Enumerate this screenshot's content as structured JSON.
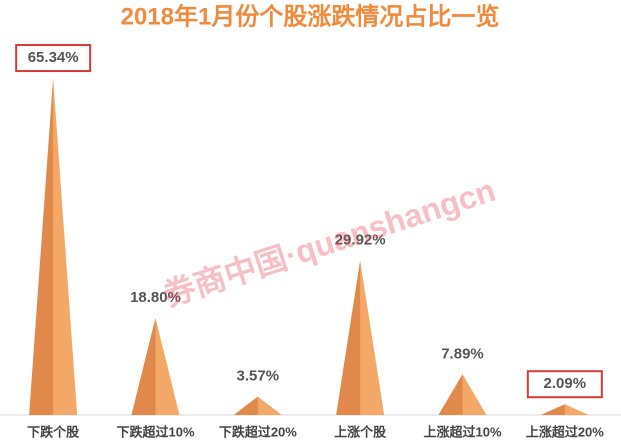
{
  "chart_data": {
    "type": "cone",
    "title": "2018年1月份个股涨跌情况占比一览",
    "watermark": "券商中国·quanshangcn",
    "categories": [
      "下跌个股",
      "下跌超过10%",
      "下跌超过20%",
      "上涨个股",
      "上涨超过10%",
      "上涨超过20%"
    ],
    "values": [
      65.34,
      18.8,
      3.57,
      29.92,
      7.89,
      2.09
    ],
    "value_labels": [
      "65.34%",
      "18.80%",
      "3.57%",
      "29.92%",
      "7.89%",
      "2.09%"
    ],
    "color": "#f4a868",
    "shade_color": "#e0894a",
    "highlight": [
      0,
      5
    ],
    "ylim": [
      0,
      70
    ]
  }
}
